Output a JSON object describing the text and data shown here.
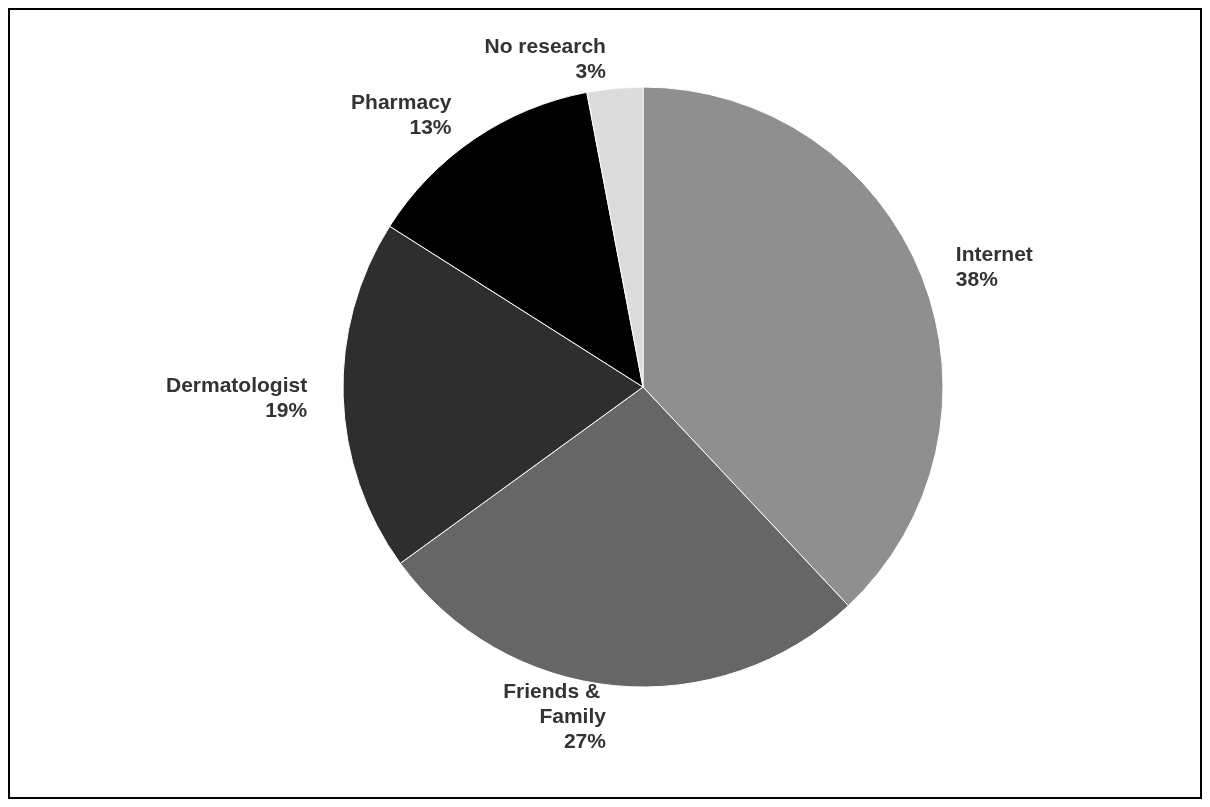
{
  "chart_data": {
    "type": "pie",
    "categories": [
      "Internet",
      "Friends & Family",
      "Dermatologist",
      "Pharmacy",
      "No research"
    ],
    "values": [
      38,
      27,
      19,
      13,
      3
    ],
    "value_labels": [
      "38%",
      "27%",
      "19%",
      "13%",
      "3%"
    ],
    "colors": [
      "#8f8f8f",
      "#666666",
      "#2e2e2e",
      "#000000",
      "#dcdcdc"
    ],
    "legend": false
  }
}
